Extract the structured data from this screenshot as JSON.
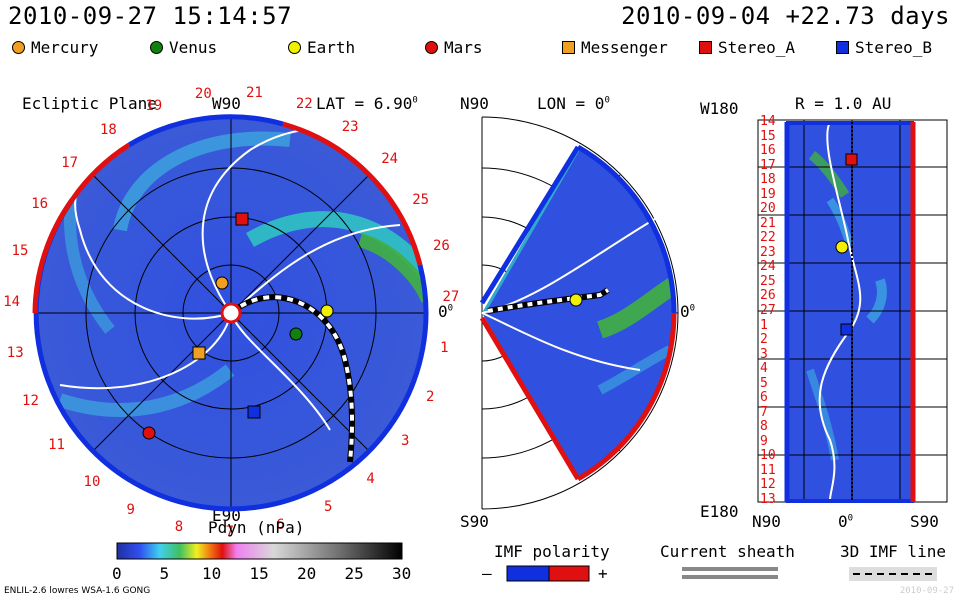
{
  "header": {
    "datetime": "2010-09-27 15:14:57",
    "reference": "2010-09-04 +22.73 days"
  },
  "legend": [
    {
      "label": "Mercury",
      "shape": "circle",
      "color": "#f0a020"
    },
    {
      "label": "Venus",
      "shape": "circle",
      "color": "#108010"
    },
    {
      "label": "Earth",
      "shape": "circle",
      "color": "#f0f000"
    },
    {
      "label": "Mars",
      "shape": "circle",
      "color": "#e01010"
    },
    {
      "label": "Messenger",
      "shape": "square",
      "color": "#f0a020"
    },
    {
      "label": "Stereo_A",
      "shape": "square",
      "color": "#e01010"
    },
    {
      "label": "Stereo_B",
      "shape": "square",
      "color": "#1030e0"
    }
  ],
  "ecliptic": {
    "title": "Ecliptic Plane",
    "top_label": "W90",
    "lat_label": "LAT = 6.90",
    "lat_sup": "0",
    "bottom_label": "E90",
    "right_label": "0",
    "right_sup": "0",
    "carrington_ticks": [
      "21",
      "22",
      "23",
      "24",
      "25",
      "26",
      "27",
      "1",
      "2",
      "3",
      "4",
      "5",
      "6",
      "7",
      "8",
      "9",
      "10",
      "11",
      "12",
      "13",
      "14",
      "15",
      "16",
      "17",
      "18",
      "19",
      "20"
    ]
  },
  "meridional": {
    "top_label": "N90",
    "lon_label": "LON = 0",
    "lon_sup": "0",
    "bottom_label": "S90",
    "right_label": "0",
    "right_sup": "0"
  },
  "radial": {
    "top_left": "W180",
    "r_label": "R = 1.0 AU",
    "bottom_left": "E180",
    "bottom_labels": [
      "N90",
      "0",
      "S90"
    ],
    "bottom_sup": "0",
    "y_ticks": [
      "14",
      "15",
      "16",
      "17",
      "18",
      "19",
      "20",
      "21",
      "22",
      "23",
      "24",
      "25",
      "26",
      "27",
      "1",
      "2",
      "3",
      "4",
      "5",
      "6",
      "7",
      "8",
      "9",
      "10",
      "11",
      "12",
      "13"
    ]
  },
  "colorbar": {
    "label": "Pdyn (nPa)",
    "ticks": [
      "0",
      "5",
      "10",
      "15",
      "20",
      "25",
      "30"
    ]
  },
  "imf": {
    "title": "IMF polarity",
    "minus": "–",
    "plus": "+",
    "neg_color": "#1030e0",
    "pos_color": "#e01010"
  },
  "sheath": {
    "title": "Current sheath"
  },
  "imf3d": {
    "title": "3D IMF line"
  },
  "footer": {
    "model": "ENLIL-2.6 lowres WSA-1.6 GONG",
    "watermark": "2010-09-27"
  }
}
